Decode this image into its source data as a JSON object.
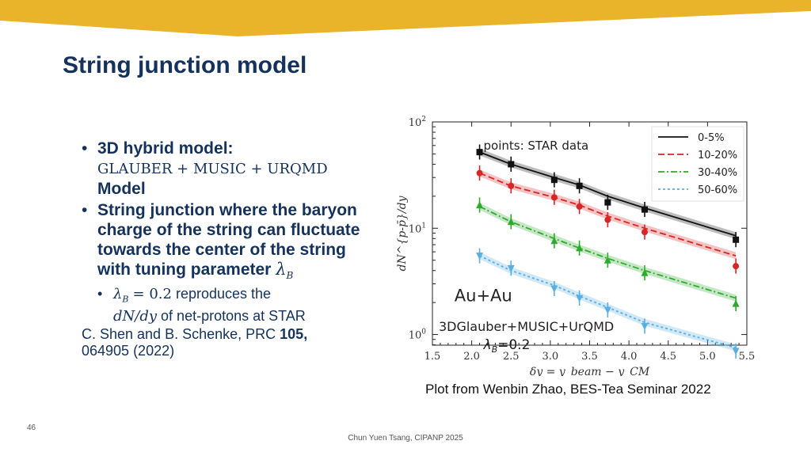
{
  "slide": {
    "title": "String junction model",
    "bullet1": {
      "label": "3D hybrid model:",
      "math": "GLAUBER + MUSIC + URQMD",
      "tail": "Model"
    },
    "bullet2": {
      "text": "String junction where the baryon charge of the string can fluctuate towards the center of the string with tuning parameter",
      "symbol": "λ",
      "symbol_sub": "B"
    },
    "sub_bullet": {
      "symbol": "λ",
      "symbol_sub": "B",
      "eq": "= 0.2",
      "text1": "reproduces the",
      "math2": "dN/dy",
      "text2": "of net-protons at STAR"
    },
    "reference": {
      "authors": "C. Shen and B. Schenke, PRC",
      "volume": "105,",
      "number": "064905 (2022)"
    },
    "caption": "Plot from Wenbin Zhao, BES-Tea Seminar 2022",
    "page_number": "46",
    "footer": "Chun Yuen Tsang, CIPANP 2025"
  },
  "colors": {
    "banner": "#e9b32a",
    "title": "#14325c",
    "black": "#111111",
    "red": "#d62626",
    "green": "#2eaa2e",
    "blue": "#5aaee0"
  },
  "chart_data": {
    "type": "line",
    "ylabel": "dN^{p-p̄}/dy",
    "xlabel": "δy = y_beam − y_CM",
    "xlim": [
      1.5,
      5.5
    ],
    "ylim": [
      1,
      100
    ],
    "yscale": "log",
    "xticks": [
      "1.5",
      "2.0",
      "2.5",
      "3.0",
      "3.5",
      "4.0",
      "4.5",
      "5.0",
      "5.5"
    ],
    "yticks": [
      {
        "base": "10",
        "exp": "0"
      },
      {
        "base": "10",
        "exp": "1"
      },
      {
        "base": "10",
        "exp": "2"
      }
    ],
    "legend_position": "top-right",
    "annotations": {
      "points": "points: STAR data",
      "system": "Au+Au",
      "model": "3DGlauber+MUSIC+UrQMD",
      "lambda": "λ",
      "lambda_sub": "B",
      "lambda_val": "=0.2"
    },
    "x": [
      2.1,
      2.5,
      3.05,
      3.37,
      3.73,
      4.2,
      5.36
    ],
    "series": [
      {
        "name": "0-5%",
        "color": "#111111",
        "dash": "",
        "marker": "square",
        "points": [
          52,
          40,
          28.5,
          25,
          17.5,
          15,
          7.8
        ],
        "model": [
          52,
          40,
          30,
          25.5,
          20,
          15.5,
          8.5
        ]
      },
      {
        "name": "10-20%",
        "color": "#d62626",
        "dash": "8,4",
        "marker": "circle",
        "points": [
          33,
          25,
          19.5,
          16,
          12,
          9.2,
          4.4
        ],
        "model": [
          33,
          25,
          19.5,
          16.5,
          13,
          10,
          5.5
        ]
      },
      {
        "name": "30-40%",
        "color": "#2eaa2e",
        "dash": "8,3,2,3",
        "marker": "triangle",
        "points": [
          16.5,
          11.5,
          7.6,
          6.5,
          5,
          3.8,
          1.95
        ],
        "model": [
          16,
          11.5,
          8,
          6.5,
          5.2,
          4,
          2.2
        ]
      },
      {
        "name": "50-60%",
        "color": "#5aaee0",
        "dash": "3,3",
        "marker": "triangle-down",
        "points": [
          5.5,
          4.2,
          2.7,
          2.2,
          1.7,
          1.2,
          0.7
        ],
        "model": [
          5.5,
          4,
          2.9,
          2.3,
          1.8,
          1.3,
          0.75
        ]
      }
    ]
  }
}
